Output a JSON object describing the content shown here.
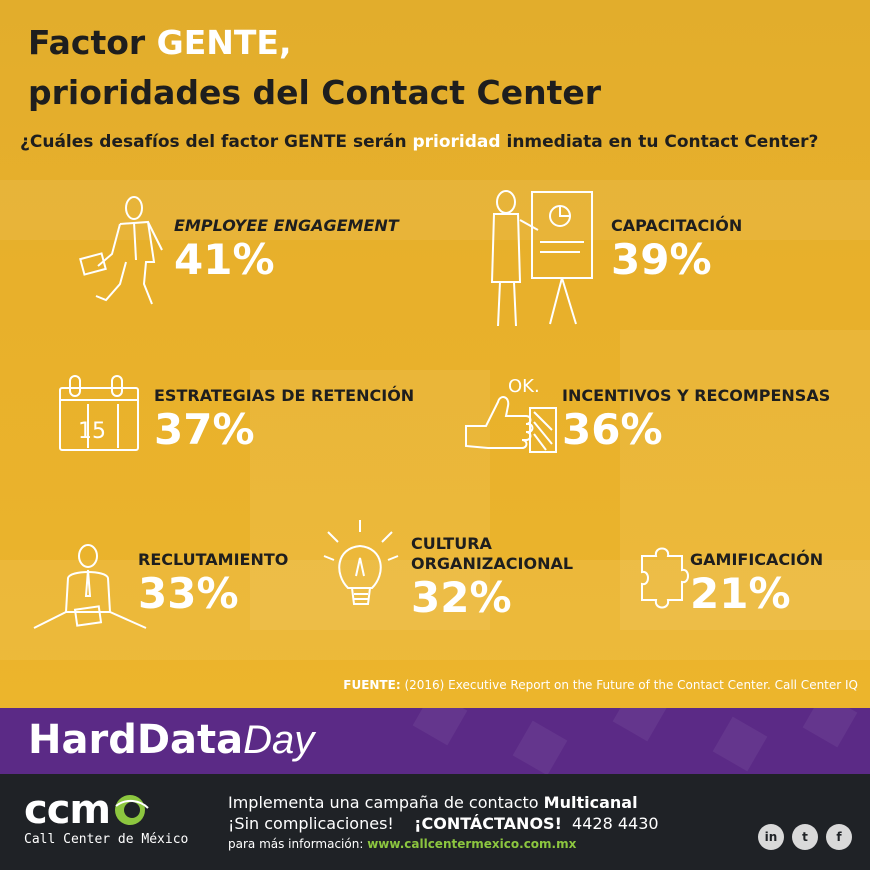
{
  "title": {
    "line1_prefix": "Factor ",
    "line1_highlight": "GENTE,",
    "line2": "prioridades del Contact Center"
  },
  "question": {
    "before": "¿Cuáles desafíos del factor GENTE serán ",
    "highlight": "prioridad",
    "after": " inmediata en tu Contact Center?"
  },
  "stats": [
    {
      "label": "EMPLOYEE ENGAGEMENT",
      "value": "41%",
      "icon": "walking-businessman-icon"
    },
    {
      "label": "CAPACITACIÓN",
      "value": "39%",
      "icon": "presenter-whiteboard-icon"
    },
    {
      "label": "ESTRATEGIAS DE RETENCIÓN",
      "value": "37%",
      "icon": "calendar-icon"
    },
    {
      "label": "INCENTIVOS Y RECOMPENSAS",
      "value": "36%",
      "icon": "thumbs-up-ok-icon"
    },
    {
      "label": "RECLUTAMIENTO",
      "value": "33%",
      "icon": "person-at-desk-icon"
    },
    {
      "label_line1": "CULTURA",
      "label_line2": "ORGANIZACIONAL",
      "value": "32%",
      "icon": "light-bulb-icon"
    },
    {
      "label": "GAMIFICACIÓN",
      "value": "21%",
      "icon": "puzzle-piece-icon"
    }
  ],
  "calendar_number": "15",
  "thumbs_ok_text": "OK.",
  "source": {
    "label": "FUENTE:",
    "text": " (2016) Executive Report on the Future of the Contact Center. Call Center IQ"
  },
  "brand": {
    "part1": "HardData",
    "part2": "Day"
  },
  "footer": {
    "logo_text": "ccm",
    "logo_sub": "Call Center de México",
    "line1_prefix": "Implementa una campaña de contacto ",
    "line1_bold": "Multicanal",
    "line2_prefix": "¡Sin complicaciones!",
    "line2_cta": "¡CONTÁCTANOS!",
    "line2_phone": "4428 4430",
    "line3_prefix": "para más información: ",
    "line3_link": "www.callcentermexico.com.mx",
    "social": [
      "in",
      "t",
      "f"
    ]
  },
  "colors": {
    "accent": "#e8b02b",
    "band": "#5b2a86",
    "footer": "#1f2226",
    "link": "#8cc63f"
  }
}
